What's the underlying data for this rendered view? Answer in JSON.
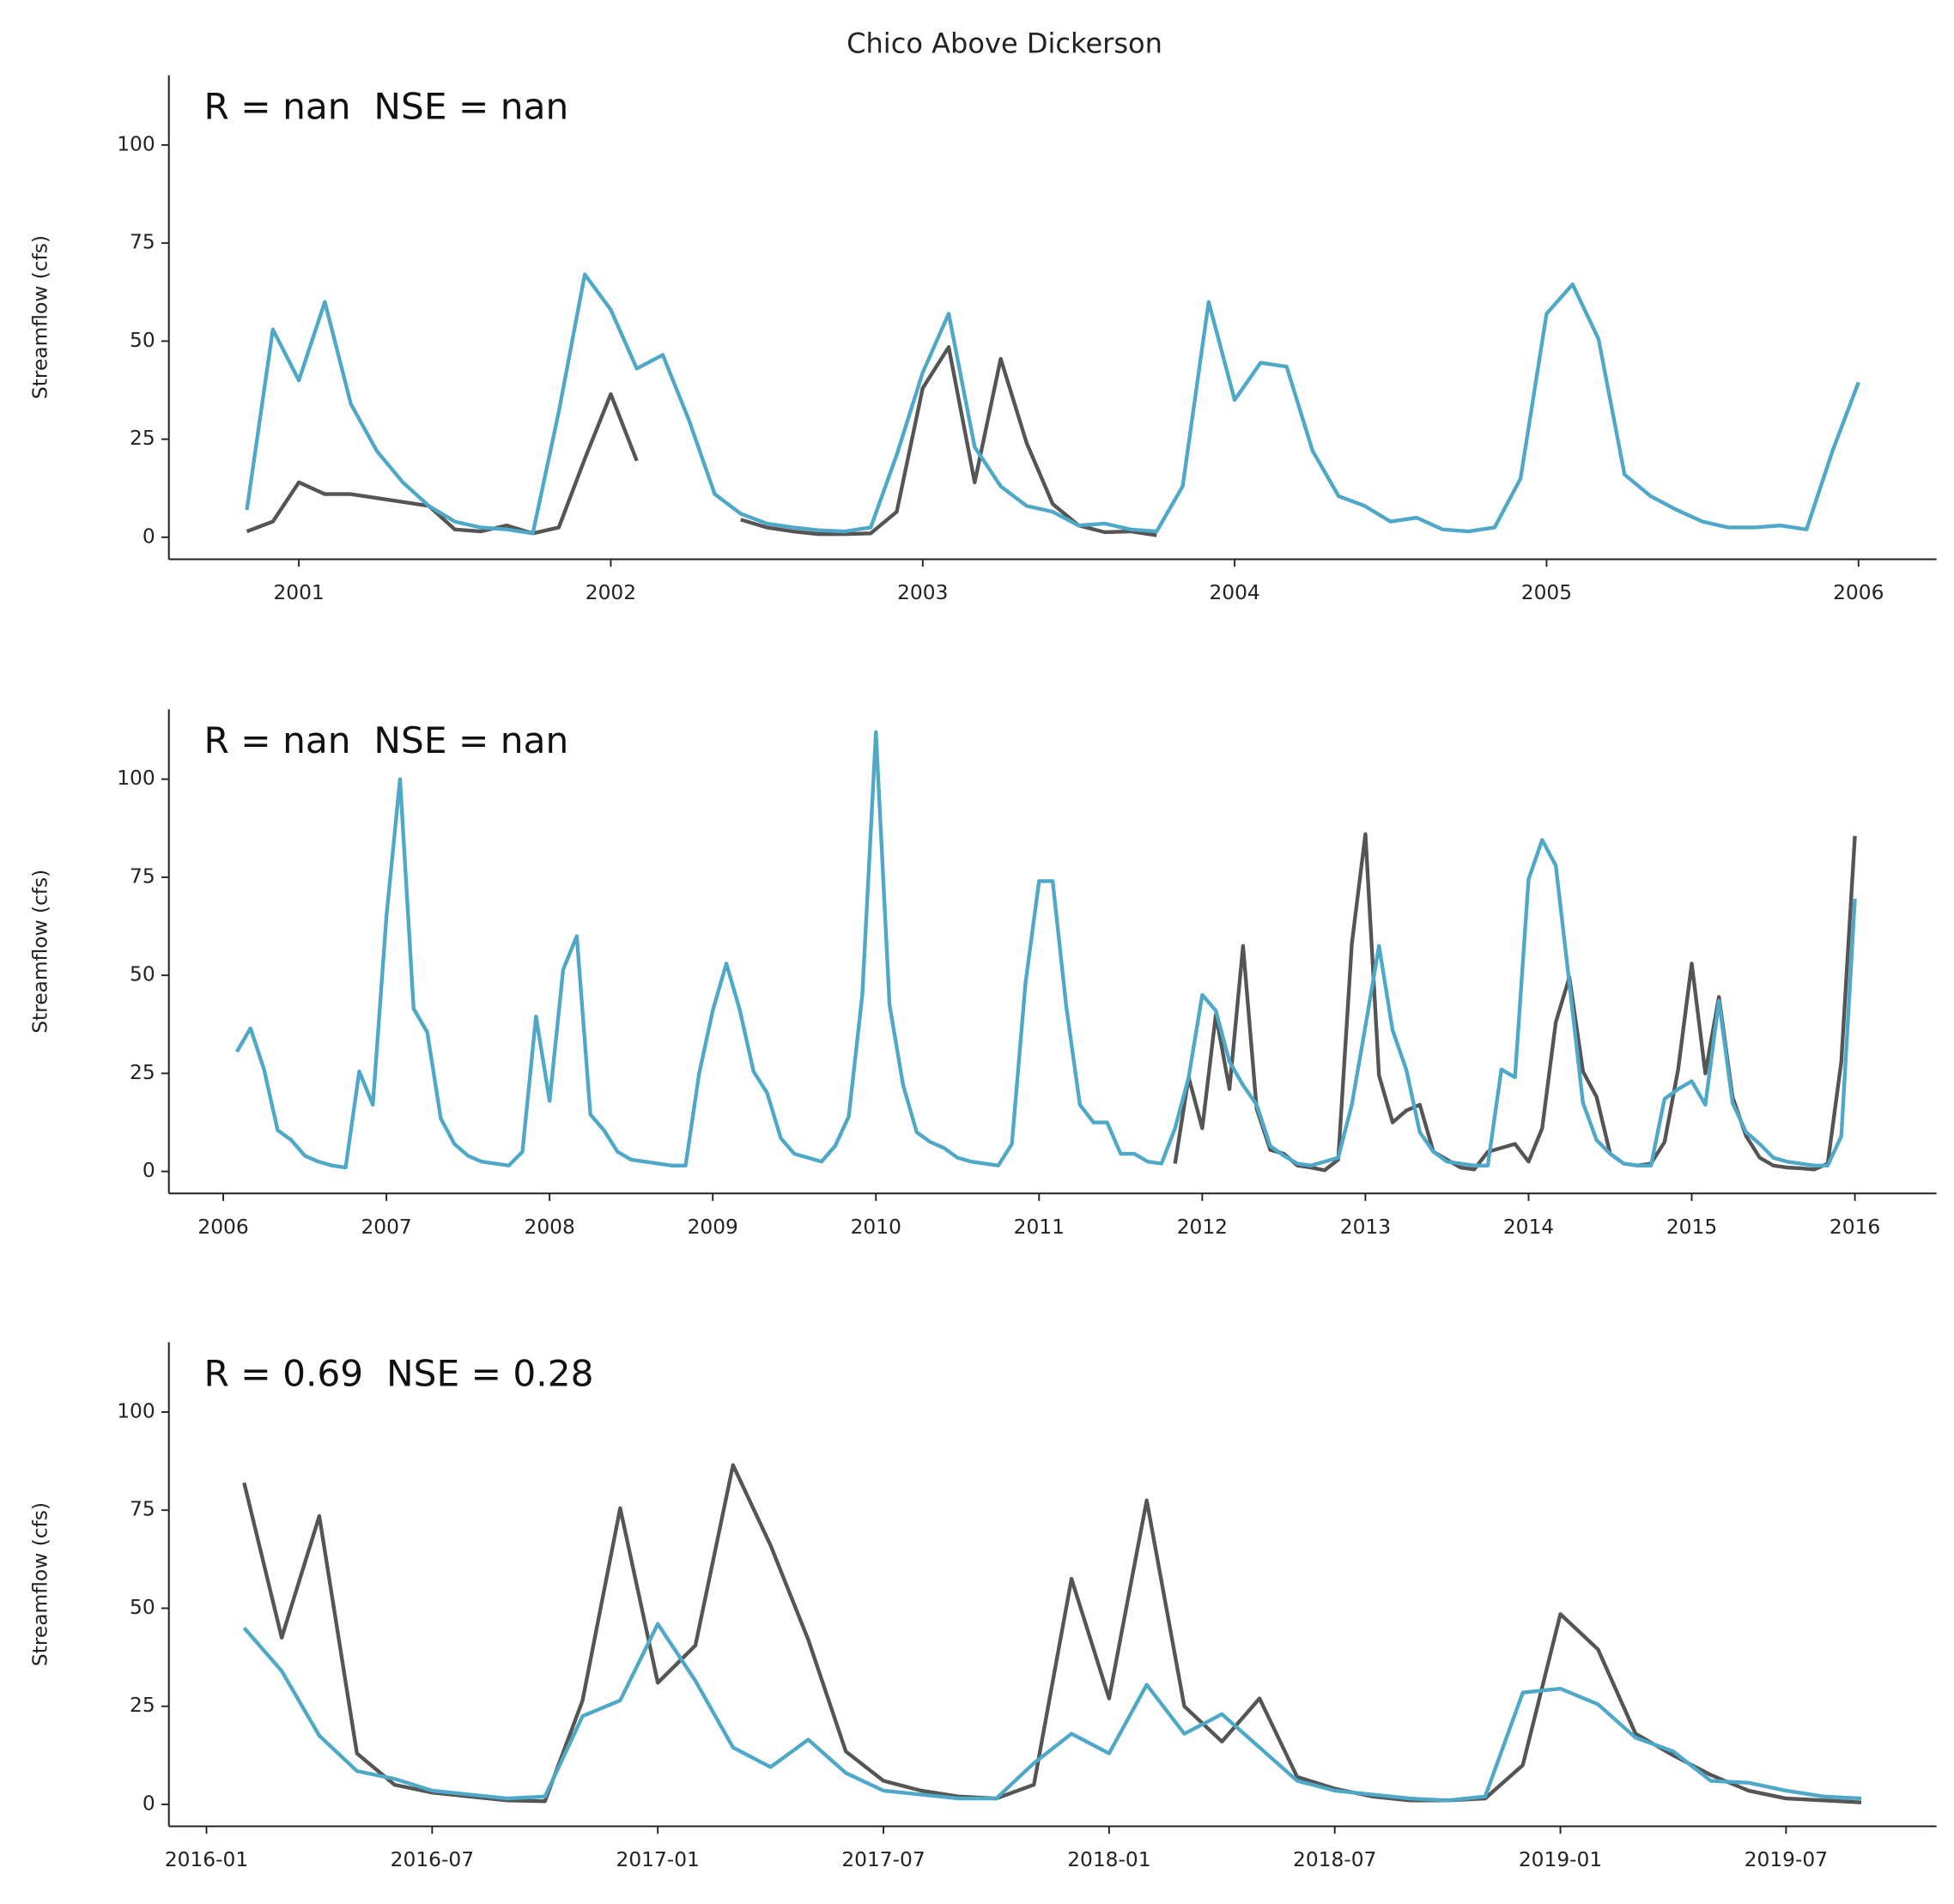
{
  "title": "Chico Above Dickerson",
  "chart_data": [
    {
      "type": "line",
      "annotation": "R = nan  NSE = nan",
      "y_label": "Streamflow (cfs)",
      "x": [
        "2000-11",
        "2000-12",
        "2001-01",
        "2001-02",
        "2001-03",
        "2001-04",
        "2001-05",
        "2001-06",
        "2001-07",
        "2001-08",
        "2001-09",
        "2001-10",
        "2001-11",
        "2001-12",
        "2002-01",
        "2002-02",
        "2002-03",
        "2002-04",
        "2002-05",
        "2002-06",
        "2002-07",
        "2002-08",
        "2002-09",
        "2002-10",
        "2002-11",
        "2002-12",
        "2003-01",
        "2003-02",
        "2003-03",
        "2003-04",
        "2003-05",
        "2003-06",
        "2003-07",
        "2003-08",
        "2003-09",
        "2003-10",
        "2003-11",
        "2003-12",
        "2004-01",
        "2004-02",
        "2004-03",
        "2004-04",
        "2004-05",
        "2004-06",
        "2004-07",
        "2004-08",
        "2004-09",
        "2004-10",
        "2004-11",
        "2004-12",
        "2005-01",
        "2005-02",
        "2005-03",
        "2005-04",
        "2005-05",
        "2005-06",
        "2005-07",
        "2005-08",
        "2005-09",
        "2005-10",
        "2005-11",
        "2005-12",
        "2006-01"
      ],
      "xlim": [
        "2000-08",
        "2006-04"
      ],
      "xticks": [
        "2001",
        "2002",
        "2003",
        "2004",
        "2005",
        "2006"
      ],
      "ylim": [
        -5.6,
        117.8
      ],
      "yticks": [
        0,
        25,
        50,
        75,
        100
      ],
      "series": [
        {
          "color": "#555555",
          "values": [
            1.5,
            4,
            14,
            11,
            11,
            10,
            9,
            8,
            2,
            1.5,
            3,
            1,
            2.5,
            20,
            36.5,
            19.5,
            null,
            null,
            null,
            4.5,
            2.5,
            1.5,
            0.8,
            0.8,
            1,
            6.5,
            38,
            48.5,
            14,
            45.5,
            24,
            8.5,
            3,
            1.3,
            1.5,
            0.5,
            null,
            null,
            null,
            null,
            null,
            null,
            null,
            null,
            null,
            null,
            null,
            null,
            null,
            null,
            null,
            null,
            null,
            null,
            null,
            null,
            null,
            null,
            null,
            null,
            null,
            null,
            null
          ]
        },
        {
          "color": "#4ea8c8",
          "values": [
            7,
            53,
            40,
            60,
            34,
            22,
            14,
            8,
            4,
            2.5,
            2,
            1,
            32,
            67,
            58,
            43,
            46.5,
            30,
            11,
            6,
            3.5,
            2.5,
            1.8,
            1.5,
            2.5,
            21,
            42,
            57,
            23,
            13,
            8,
            6.5,
            3,
            3.5,
            2,
            1.5,
            13,
            60,
            35,
            44.5,
            43.5,
            22,
            10.5,
            8,
            4,
            5,
            2,
            1.5,
            2.5,
            15,
            57,
            64.5,
            50.5,
            16,
            10.5,
            7,
            4,
            2.5,
            2.5,
            3,
            2,
            22,
            39.5
          ]
        }
      ]
    },
    {
      "type": "line",
      "annotation": "R = nan  NSE = nan",
      "y_label": "Streamflow (cfs)",
      "x": [
        "2006-02",
        "2006-03",
        "2006-04",
        "2006-05",
        "2006-06",
        "2006-07",
        "2006-08",
        "2006-09",
        "2006-10",
        "2006-11",
        "2006-12",
        "2007-01",
        "2007-02",
        "2007-03",
        "2007-04",
        "2007-05",
        "2007-06",
        "2007-07",
        "2007-08",
        "2007-09",
        "2007-10",
        "2007-11",
        "2007-12",
        "2008-01",
        "2008-02",
        "2008-03",
        "2008-04",
        "2008-05",
        "2008-06",
        "2008-07",
        "2008-08",
        "2008-09",
        "2008-10",
        "2008-11",
        "2008-12",
        "2009-01",
        "2009-02",
        "2009-03",
        "2009-04",
        "2009-05",
        "2009-06",
        "2009-07",
        "2009-08",
        "2009-09",
        "2009-10",
        "2009-11",
        "2009-12",
        "2010-01",
        "2010-02",
        "2010-03",
        "2010-04",
        "2010-05",
        "2010-06",
        "2010-07",
        "2010-08",
        "2010-09",
        "2010-10",
        "2010-11",
        "2010-12",
        "2011-01",
        "2011-02",
        "2011-03",
        "2011-04",
        "2011-05",
        "2011-06",
        "2011-07",
        "2011-08",
        "2011-09",
        "2011-10",
        "2011-11",
        "2011-12",
        "2012-01",
        "2012-02",
        "2012-03",
        "2012-04",
        "2012-05",
        "2012-06",
        "2012-07",
        "2012-08",
        "2012-09",
        "2012-10",
        "2012-11",
        "2012-12",
        "2013-01",
        "2013-02",
        "2013-03",
        "2013-04",
        "2013-05",
        "2013-06",
        "2013-07",
        "2013-08",
        "2013-09",
        "2013-10",
        "2013-11",
        "2013-12",
        "2014-01",
        "2014-02",
        "2014-03",
        "2014-04",
        "2014-05",
        "2014-06",
        "2014-07",
        "2014-08",
        "2014-09",
        "2014-10",
        "2014-11",
        "2014-12",
        "2015-01",
        "2015-02",
        "2015-03",
        "2015-04",
        "2015-05",
        "2015-06",
        "2015-07",
        "2015-08",
        "2015-09",
        "2015-10",
        "2015-11",
        "2015-12",
        "2016-01"
      ],
      "xlim": [
        "2005-09",
        "2016-07"
      ],
      "xticks": [
        "2006",
        "2007",
        "2008",
        "2009",
        "2010",
        "2011",
        "2012",
        "2013",
        "2014",
        "2015",
        "2016"
      ],
      "ylim": [
        -5.6,
        117.8
      ],
      "yticks": [
        0,
        25,
        50,
        75,
        100
      ],
      "series": [
        {
          "color": "#555555",
          "values": [
            null,
            null,
            null,
            null,
            null,
            null,
            null,
            null,
            null,
            null,
            null,
            null,
            null,
            null,
            null,
            null,
            null,
            null,
            null,
            null,
            null,
            null,
            null,
            null,
            null,
            null,
            null,
            null,
            null,
            null,
            null,
            null,
            null,
            null,
            null,
            null,
            null,
            null,
            null,
            null,
            null,
            null,
            null,
            null,
            null,
            null,
            null,
            null,
            null,
            null,
            null,
            null,
            null,
            null,
            null,
            null,
            null,
            null,
            null,
            null,
            null,
            null,
            null,
            null,
            null,
            null,
            null,
            null,
            null,
            2,
            24,
            11,
            40,
            21,
            57.5,
            16,
            5.5,
            4.5,
            1.5,
            1,
            0.3,
            3,
            58,
            86,
            24.5,
            12.5,
            15.5,
            17,
            5,
            3,
            1,
            0.5,
            5,
            6,
            7,
            2.5,
            11,
            38,
            49.5,
            25.5,
            19,
            4.5,
            2,
            1.5,
            2,
            7.5,
            26,
            53,
            25,
            44.5,
            19,
            9,
            3.5,
            1.5,
            1,
            0.8,
            0.5,
            2,
            28,
            85.5
          ]
        },
        {
          "color": "#4ea8c8",
          "values": [
            30.5,
            36.5,
            26,
            10.5,
            8,
            4,
            2.5,
            1.5,
            1,
            25.5,
            17,
            65,
            100,
            41.5,
            35.5,
            13.5,
            7,
            4,
            2.5,
            2,
            1.5,
            5,
            39.5,
            18,
            51.5,
            60,
            14.5,
            10.5,
            5,
            3,
            2.5,
            2,
            1.5,
            1.5,
            25,
            41,
            53,
            41,
            25.5,
            20,
            8.5,
            4.5,
            3.5,
            2.5,
            6.5,
            14,
            45,
            112,
            42.5,
            22,
            10,
            7.5,
            6,
            3.5,
            2.5,
            2,
            1.5,
            7,
            48,
            74,
            74,
            42,
            17,
            12.5,
            12.5,
            4.5,
            4.5,
            2.5,
            2,
            11,
            24,
            45,
            41,
            28,
            22,
            17,
            6.5,
            4,
            2,
            1.5,
            2.5,
            3.5,
            17,
            37,
            57.5,
            36,
            26,
            10,
            5,
            2.5,
            2,
            1.5,
            1.5,
            26,
            24,
            74.5,
            84.5,
            78,
            48,
            17.5,
            8,
            4.5,
            2,
            1.5,
            1.5,
            18.5,
            21,
            23,
            17,
            43.5,
            17.5,
            10,
            7,
            3.5,
            2.5,
            2,
            1.5,
            1.5,
            9,
            69.5
          ]
        }
      ]
    },
    {
      "type": "line",
      "annotation": "R = 0.69  NSE = 0.28",
      "y_label": "Streamflow (cfs)",
      "x": [
        "2016-02",
        "2016-03",
        "2016-04",
        "2016-05",
        "2016-06",
        "2016-07",
        "2016-08",
        "2016-09",
        "2016-10",
        "2016-11",
        "2016-12",
        "2017-01",
        "2017-02",
        "2017-03",
        "2017-04",
        "2017-05",
        "2017-06",
        "2017-07",
        "2017-08",
        "2017-09",
        "2017-10",
        "2017-11",
        "2017-12",
        "2018-01",
        "2018-02",
        "2018-03",
        "2018-04",
        "2018-05",
        "2018-06",
        "2018-07",
        "2018-08",
        "2018-09",
        "2018-10",
        "2018-11",
        "2018-12",
        "2019-01",
        "2019-02",
        "2019-03",
        "2019-04",
        "2019-05",
        "2019-06",
        "2019-07",
        "2019-08",
        "2019-09"
      ],
      "xlim": [
        "2015-12",
        "2019-11"
      ],
      "xticks": [
        "2016-01",
        "2016-07",
        "2017-01",
        "2017-07",
        "2018-01",
        "2018-07",
        "2019-01",
        "2019-07"
      ],
      "ylim": [
        -5.6,
        117.8
      ],
      "yticks": [
        0,
        25,
        50,
        75,
        100
      ],
      "series": [
        {
          "color": "#555555",
          "values": [
            82,
            42.5,
            73.5,
            13,
            5,
            3,
            2,
            1,
            0.8,
            26.5,
            75.5,
            31,
            40.5,
            86.5,
            66,
            42,
            13.5,
            6,
            3.5,
            2,
            1.5,
            5,
            57.5,
            27,
            77.5,
            25,
            16,
            27,
            7,
            4,
            2,
            1,
            1,
            1.5,
            10,
            48.5,
            39.5,
            18,
            12.5,
            7.5,
            3.5,
            1.5,
            1,
            0.5
          ]
        },
        {
          "color": "#4ea8c8",
          "values": [
            45,
            34,
            17.5,
            8.5,
            6.5,
            3.5,
            2.5,
            1.5,
            2,
            22.5,
            26.5,
            46,
            31.5,
            14.5,
            9.5,
            16.5,
            8,
            3.5,
            2.5,
            1.5,
            1.5,
            10.5,
            18,
            13,
            30.5,
            18,
            23,
            14.5,
            6,
            3.5,
            2.5,
            1.5,
            1,
            2,
            28.5,
            29.5,
            25.5,
            17,
            13.5,
            6,
            5.5,
            3.5,
            2,
            1.5
          ]
        }
      ]
    }
  ]
}
